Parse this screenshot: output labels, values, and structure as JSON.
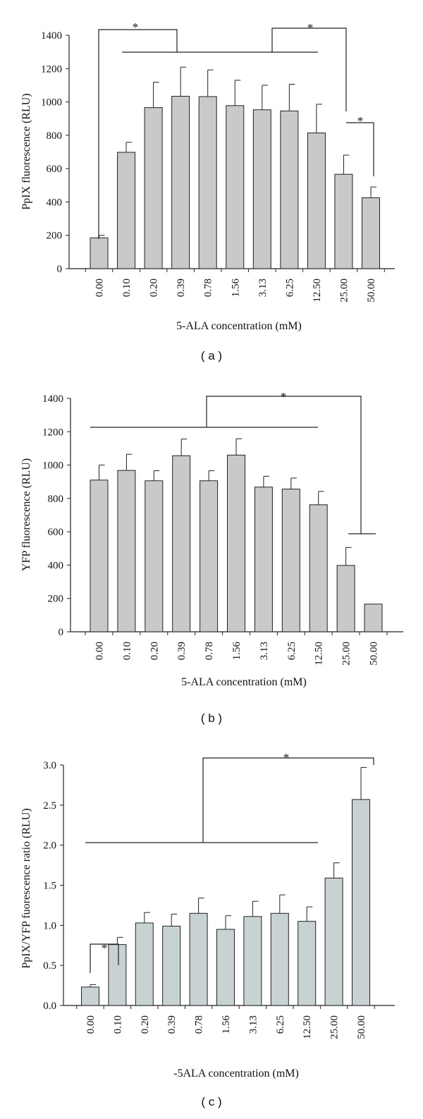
{
  "chart_data": [
    {
      "type": "bar",
      "panel_label": "( a )",
      "categories": [
        "0.00",
        "0.10",
        "0.20",
        "0.39",
        "0.78",
        "1.56",
        "3.13",
        "6.25",
        "12.50",
        "25.00",
        "50.00"
      ],
      "values": [
        185,
        698,
        966,
        1034,
        1032,
        978,
        953,
        946,
        814,
        566,
        425
      ],
      "errors": [
        15,
        60,
        152,
        175,
        160,
        152,
        147,
        160,
        172,
        115,
        65
      ],
      "xlabel": "5-ALA concentration (mM)",
      "ylabel": "PpIX fluorescence (RLU)",
      "ylim": [
        0,
        1400
      ],
      "yticks": [
        0,
        200,
        400,
        600,
        800,
        1000,
        1200,
        1400
      ],
      "bar_color": "#c9c9c9",
      "significance_marker": "*"
    },
    {
      "type": "bar",
      "panel_label": "( b )",
      "categories": [
        "0.00",
        "0.10",
        "0.20",
        "0.39",
        "0.78",
        "1.56",
        "3.13",
        "6.25",
        "12.50",
        "25.00",
        "50.00"
      ],
      "values": [
        910,
        968,
        906,
        1056,
        906,
        1060,
        868,
        856,
        762,
        398,
        166
      ],
      "errors": [
        90,
        97,
        60,
        100,
        60,
        98,
        65,
        66,
        80,
        108,
        0
      ],
      "xlabel": "5-ALA concentration (mM)",
      "ylabel": "YFP fluorescence (RLU)",
      "ylim": [
        0,
        1400
      ],
      "yticks": [
        0,
        200,
        400,
        600,
        800,
        1000,
        1200,
        1400
      ],
      "bar_color": "#c9c9c9",
      "significance_marker": "*"
    },
    {
      "type": "bar",
      "panel_label": "( c )",
      "categories": [
        "0.00",
        "0.10",
        "0.20",
        "0.39",
        "0.78",
        "1.56",
        "3.13",
        "6.25",
        "12.50",
        "25.00",
        "50.00"
      ],
      "values": [
        0.23,
        0.76,
        1.03,
        0.99,
        1.15,
        0.95,
        1.11,
        1.15,
        1.05,
        1.59,
        2.57
      ],
      "errors": [
        0.03,
        0.09,
        0.13,
        0.15,
        0.19,
        0.17,
        0.19,
        0.23,
        0.18,
        0.19,
        0.4
      ],
      "xlabel": "-5ALA concentration (mM)",
      "ylabel": "PpIX/YFP fuorescence ratio (RLU)",
      "ylim": [
        0,
        3
      ],
      "yticks": [
        "0.0",
        "0.5",
        "1.0",
        "1.5",
        "2.0",
        "2.5",
        "3.0"
      ],
      "bar_color": "#c9d2d2",
      "significance_marker": "*"
    }
  ]
}
